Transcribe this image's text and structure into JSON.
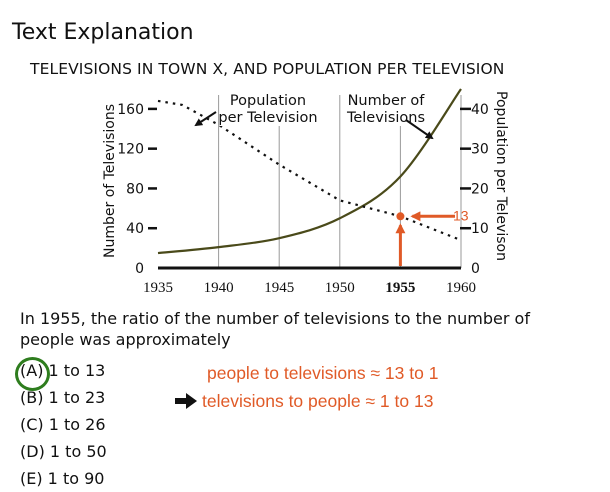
{
  "header": {
    "title": "Text Explanation"
  },
  "chart_data": {
    "type": "line",
    "title": "TELEVISIONS IN TOWN X, AND POPULATION PER TELEVISION",
    "x": [
      1935,
      1940,
      1945,
      1950,
      1955,
      1960
    ],
    "xlim": [
      1935,
      1960
    ],
    "x_tick_labels": [
      "1935",
      "1940",
      "1945",
      "1950",
      "1955",
      "1960"
    ],
    "ylabel": "Number of Televisions",
    "ylim": [
      0,
      180
    ],
    "y_ticks": [
      0,
      40,
      80,
      120,
      160
    ],
    "y_tick_labels": [
      "0",
      "40",
      "80",
      "120",
      "160"
    ],
    "y2label": "Population per Televison",
    "y2lim": [
      0,
      45
    ],
    "y2_ticks": [
      0,
      10,
      20,
      30,
      40
    ],
    "y2_tick_labels": [
      "0",
      "10",
      "20",
      "30",
      "40"
    ],
    "grid": "vertical",
    "series": [
      {
        "name": "Number of Televisions",
        "axis": "left",
        "style": "solid",
        "color": "#4a4a1a",
        "x": [
          1935,
          1940,
          1945,
          1950,
          1955,
          1960
        ],
        "values": [
          15,
          21,
          30,
          50,
          92,
          180
        ]
      },
      {
        "name": "Population per Television",
        "axis": "right",
        "style": "dotted",
        "color": "#111111",
        "x": [
          1935,
          1937,
          1940,
          1945,
          1950,
          1955,
          1960
        ],
        "values": [
          42,
          41,
          36,
          26,
          17,
          13,
          7
        ]
      }
    ],
    "legend_labels": {
      "population": [
        "Population",
        "per Television"
      ],
      "televisions": [
        "Number of",
        "Televisions"
      ]
    },
    "annotation": {
      "label": "13",
      "x": 1955,
      "value": 13,
      "color": "#e05a27"
    }
  },
  "question": {
    "text": "In 1955, the ratio of the number of televisions to the number of people was approximately",
    "choices": [
      {
        "letter": "(A)",
        "text": " 1 to 13",
        "selected": true
      },
      {
        "letter": "(B)",
        "text": " 1 to 23",
        "selected": false
      },
      {
        "letter": "(C)",
        "text": " 1 to 26",
        "selected": false
      },
      {
        "letter": "(D)",
        "text": " 1 to 50",
        "selected": false
      },
      {
        "letter": "(E)",
        "text": " 1 to 90",
        "selected": false
      }
    ]
  },
  "notes": {
    "line1": "people to televisions ≈ 13 to 1",
    "line2": "televisions to people  ≈ 1 to 13",
    "color": "#e05a27",
    "circle_color": "#2e7d1e"
  }
}
